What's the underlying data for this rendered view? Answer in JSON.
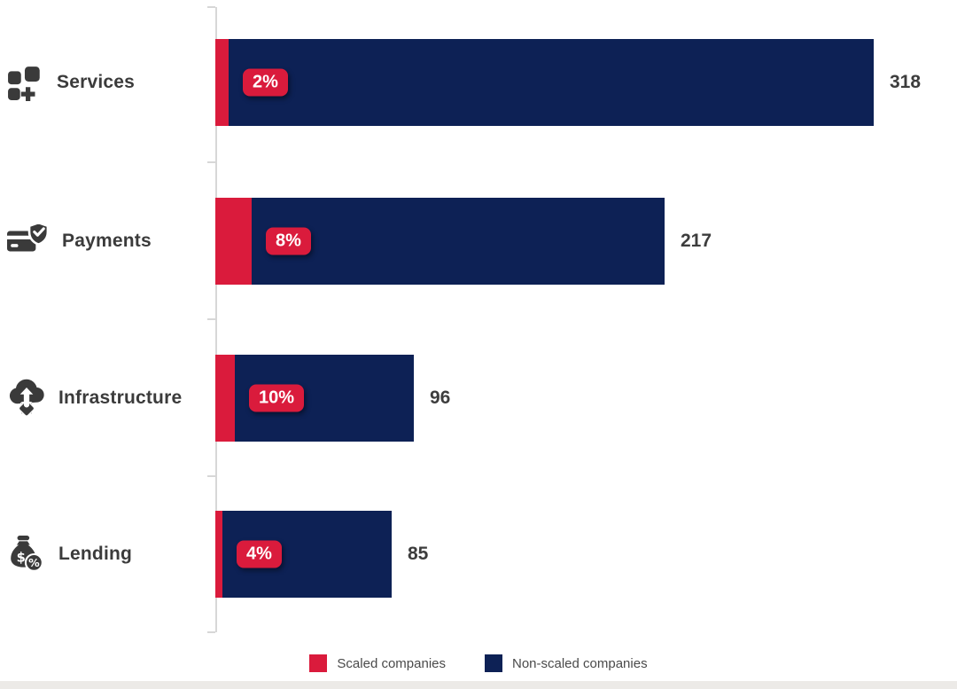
{
  "chart_data": {
    "type": "bar",
    "orientation": "horizontal",
    "title": "",
    "categories": [
      "Services",
      "Payments",
      "Infrastructure",
      "Lending"
    ],
    "category_icons": [
      "services-grid-plus-icon",
      "payment-card-shield-icon",
      "cloud-upload-gear-icon",
      "moneybag-percent-icon"
    ],
    "series": [
      {
        "name": "Scaled companies",
        "role": "percent-of-total-segment",
        "color": "#da1b3c",
        "values": [
          2,
          8,
          10,
          4
        ],
        "labels": [
          "2%",
          "8%",
          "10%",
          "4%"
        ]
      },
      {
        "name": "Non-scaled companies",
        "role": "remainder-segment",
        "color": "#0d2155"
      }
    ],
    "totals": {
      "values": [
        318,
        217,
        96,
        85
      ],
      "labels": [
        "318",
        "217",
        "96",
        "85"
      ]
    },
    "x_axis": {
      "visible": false,
      "min": 0,
      "max_implied": 330
    },
    "grid": false,
    "legend_position": "bottom"
  },
  "legend": {
    "items": [
      {
        "label": "Scaled companies",
        "color": "#da1b3c"
      },
      {
        "label": "Non-scaled companies",
        "color": "#0d2155"
      }
    ]
  },
  "colors": {
    "scaled_red": "#da1b3c",
    "non_scaled_navy": "#0d2155",
    "icon_and_text": "#3a3a3a",
    "axis_gray": "#d7d7d7",
    "bottom_strip": "#eceae7"
  }
}
